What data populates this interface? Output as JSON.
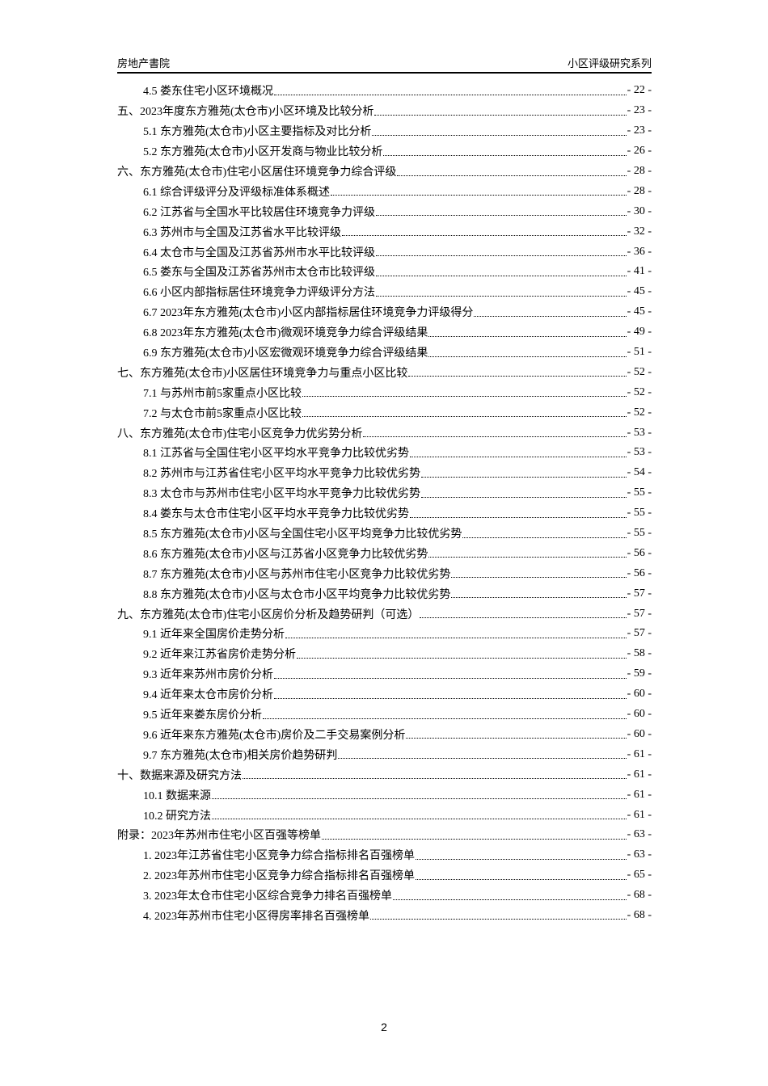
{
  "header": {
    "left": "房地产書院",
    "right": "小区评级研究系列"
  },
  "toc": [
    {
      "level": 2,
      "title": "4.5 娄东住宅小区环境概况",
      "page": "- 22 -"
    },
    {
      "level": 1,
      "title": "五、2023年度东方雅苑(太仓市)小区环境及比较分析",
      "page": "- 23 -"
    },
    {
      "level": 2,
      "title": "5.1 东方雅苑(太仓市)小区主要指标及对比分析",
      "page": "- 23 -"
    },
    {
      "level": 2,
      "title": "5.2 东方雅苑(太仓市)小区开发商与物业比较分析",
      "page": "- 26 -"
    },
    {
      "level": 1,
      "title": "六、东方雅苑(太仓市)住宅小区居住环境竞争力综合评级",
      "page": "- 28 -"
    },
    {
      "level": 2,
      "title": "6.1 综合评级评分及评级标准体系概述",
      "page": "- 28 -"
    },
    {
      "level": 2,
      "title": "6.2 江苏省与全国水平比较居住环境竞争力评级",
      "page": "- 30 -"
    },
    {
      "level": 2,
      "title": "6.3 苏州市与全国及江苏省水平比较评级",
      "page": "- 32 -"
    },
    {
      "level": 2,
      "title": "6.4 太仓市与全国及江苏省苏州市水平比较评级",
      "page": "- 36 -"
    },
    {
      "level": 2,
      "title": "6.5 娄东与全国及江苏省苏州市太仓市比较评级",
      "page": "- 41 -"
    },
    {
      "level": 2,
      "title": "6.6 小区内部指标居住环境竞争力评级评分方法",
      "page": "- 45 -"
    },
    {
      "level": 2,
      "title": "6.7 2023年东方雅苑(太仓市)小区内部指标居住环境竞争力评级得分",
      "page": "- 45 -"
    },
    {
      "level": 2,
      "title": "6.8 2023年东方雅苑(太仓市)微观环境竞争力综合评级结果",
      "page": "- 49 -"
    },
    {
      "level": 2,
      "title": "6.9 东方雅苑(太仓市)小区宏微观环境竞争力综合评级结果",
      "page": "- 51 -"
    },
    {
      "level": 1,
      "title": "七、东方雅苑(太仓市)小区居住环境竞争力与重点小区比较",
      "page": "- 52 -"
    },
    {
      "level": 2,
      "title": "7.1 与苏州市前5家重点小区比较",
      "page": "- 52 -"
    },
    {
      "level": 2,
      "title": "7.2 与太仓市前5家重点小区比较",
      "page": "- 52 -"
    },
    {
      "level": 1,
      "title": "八、东方雅苑(太仓市)住宅小区竞争力优劣势分析",
      "page": "- 53 -"
    },
    {
      "level": 2,
      "title": "8.1 江苏省与全国住宅小区平均水平竞争力比较优劣势",
      "page": "- 53 -"
    },
    {
      "level": 2,
      "title": "8.2 苏州市与江苏省住宅小区平均水平竞争力比较优劣势",
      "page": "- 54 -"
    },
    {
      "level": 2,
      "title": "8.3 太仓市与苏州市住宅小区平均水平竞争力比较优劣势",
      "page": "- 55 -"
    },
    {
      "level": 2,
      "title": "8.4 娄东与太仓市住宅小区平均水平竞争力比较优劣势",
      "page": "- 55 -"
    },
    {
      "level": 2,
      "title": "8.5 东方雅苑(太仓市)小区与全国住宅小区平均竞争力比较优劣势",
      "page": "- 55 -"
    },
    {
      "level": 2,
      "title": "8.6 东方雅苑(太仓市)小区与江苏省小区竞争力比较优劣势",
      "page": "- 56 -"
    },
    {
      "level": 2,
      "title": "8.7 东方雅苑(太仓市)小区与苏州市住宅小区竞争力比较优劣势",
      "page": "- 56 -"
    },
    {
      "level": 2,
      "title": "8.8 东方雅苑(太仓市)小区与太仓市小区平均竞争力比较优劣势",
      "page": "- 57 -"
    },
    {
      "level": 1,
      "title": "九、东方雅苑(太仓市)住宅小区房价分析及趋势研判（可选）",
      "page": "- 57 -"
    },
    {
      "level": 2,
      "title": "9.1 近年来全国房价走势分析",
      "page": "- 57 -"
    },
    {
      "level": 2,
      "title": "9.2 近年来江苏省房价走势分析",
      "page": "- 58 -"
    },
    {
      "level": 2,
      "title": "9.3 近年来苏州市房价分析",
      "page": "- 59 -"
    },
    {
      "level": 2,
      "title": "9.4 近年来太仓市房价分析",
      "page": "- 60 -"
    },
    {
      "level": 2,
      "title": "9.5 近年来娄东房价分析",
      "page": "- 60 -"
    },
    {
      "level": 2,
      "title": "9.6 近年来东方雅苑(太仓市)房价及二手交易案例分析",
      "page": "- 60 -"
    },
    {
      "level": 2,
      "title": "9.7 东方雅苑(太仓市)相关房价趋势研判",
      "page": "- 61 -"
    },
    {
      "level": 1,
      "title": "十、数据来源及研究方法",
      "page": "- 61 -"
    },
    {
      "level": 2,
      "title": "10.1 数据来源",
      "page": "- 61 -"
    },
    {
      "level": 2,
      "title": "10.2 研究方法",
      "page": "- 61 -"
    },
    {
      "level": 1,
      "title": "附录：2023年苏州市住宅小区百强等榜单",
      "page": "- 63 -"
    },
    {
      "level": 2,
      "title": "1.  2023年江苏省住宅小区竞争力综合指标排名百强榜单",
      "page": "- 63 -"
    },
    {
      "level": 2,
      "title": "2.  2023年苏州市住宅小区竞争力综合指标排名百强榜单",
      "page": "- 65 -"
    },
    {
      "level": 2,
      "title": "3.  2023年太仓市住宅小区综合竞争力排名百强榜单",
      "page": "- 68 -"
    },
    {
      "level": 2,
      "title": "4.  2023年苏州市住宅小区得房率排名百强榜单",
      "page": "- 68 -"
    }
  ],
  "footer": {
    "page_number": "2"
  }
}
